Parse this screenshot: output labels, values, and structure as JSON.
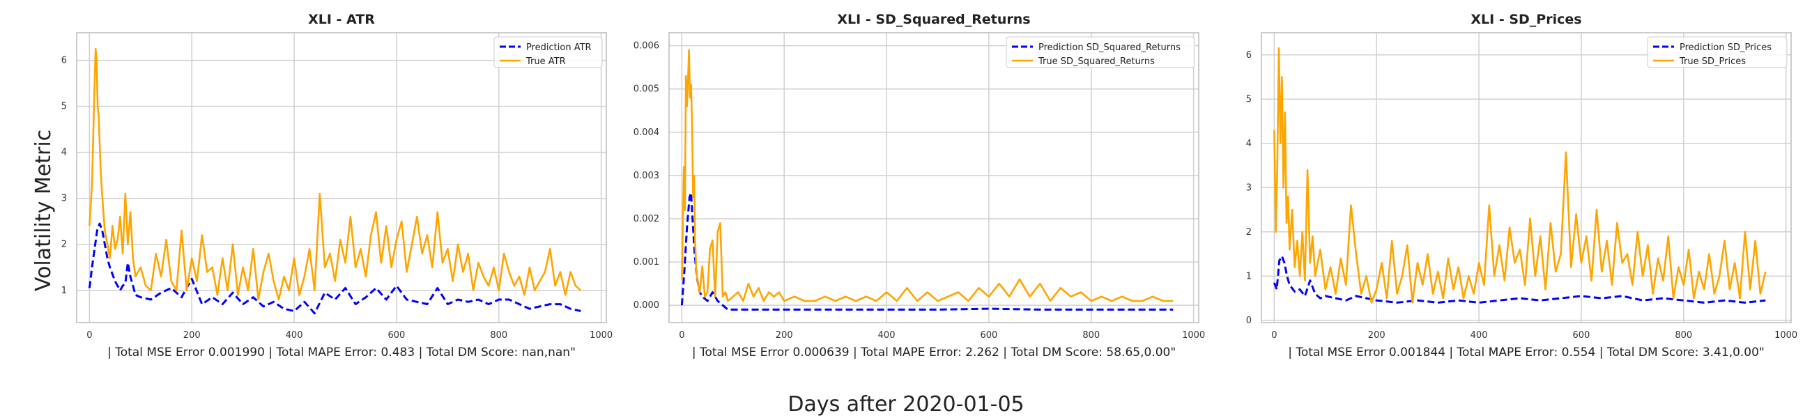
{
  "figure": {
    "supxlabel": "Days after 2020-01-05",
    "supylabel": "Volatility Metric"
  },
  "colors": {
    "prediction": "#0000ff",
    "true": "#ffa500",
    "grid": "#d0d0d0",
    "frame": "#bbbbbb"
  },
  "chart_data": [
    {
      "type": "line",
      "title": "XLI - ATR",
      "xlabel": " | Total MSE Error 0.001990 | Total MAPE Error: 0.483 | Total DM Score: nan,nan\"",
      "ylabel": "",
      "xlim": [
        -25,
        1010
      ],
      "ylim": [
        0.3,
        6.6
      ],
      "xticks": [
        0,
        200,
        400,
        600,
        800,
        1000
      ],
      "yticks": [
        1,
        2,
        3,
        4,
        5,
        6
      ],
      "grid": true,
      "legend": "top-right",
      "series": [
        {
          "name": "Prediction ATR",
          "style": "dashed",
          "x": [
            0,
            5,
            10,
            15,
            20,
            25,
            30,
            35,
            40,
            45,
            50,
            55,
            60,
            65,
            70,
            75,
            80,
            85,
            90,
            100,
            120,
            140,
            160,
            180,
            200,
            220,
            240,
            260,
            280,
            300,
            320,
            340,
            360,
            380,
            400,
            420,
            440,
            460,
            480,
            500,
            520,
            540,
            560,
            580,
            600,
            620,
            640,
            660,
            680,
            700,
            720,
            740,
            760,
            780,
            800,
            820,
            840,
            860,
            880,
            900,
            920,
            940,
            960
          ],
          "y": [
            1.05,
            1.5,
            1.9,
            2.3,
            2.45,
            2.3,
            2.0,
            1.7,
            1.5,
            1.35,
            1.2,
            1.1,
            1.0,
            1.1,
            1.15,
            1.6,
            1.3,
            1.1,
            0.9,
            0.85,
            0.8,
            0.95,
            1.05,
            0.85,
            1.25,
            0.7,
            0.85,
            0.7,
            0.95,
            0.7,
            0.85,
            0.65,
            0.75,
            0.6,
            0.55,
            0.75,
            0.5,
            0.95,
            0.8,
            1.05,
            0.7,
            0.85,
            1.05,
            0.8,
            1.1,
            0.8,
            0.75,
            0.7,
            1.05,
            0.7,
            0.8,
            0.75,
            0.8,
            0.7,
            0.8,
            0.8,
            0.7,
            0.6,
            0.65,
            0.7,
            0.7,
            0.6,
            0.55
          ]
        },
        {
          "name": "True ATR",
          "style": "solid",
          "x": [
            0,
            5,
            8,
            10,
            12,
            14,
            16,
            18,
            20,
            22,
            24,
            26,
            28,
            30,
            35,
            40,
            45,
            50,
            55,
            60,
            65,
            70,
            75,
            80,
            85,
            90,
            100,
            110,
            120,
            130,
            140,
            150,
            160,
            170,
            180,
            190,
            200,
            210,
            220,
            230,
            240,
            250,
            260,
            270,
            280,
            290,
            300,
            310,
            320,
            330,
            340,
            350,
            360,
            370,
            380,
            390,
            400,
            410,
            420,
            430,
            440,
            450,
            460,
            470,
            480,
            490,
            500,
            510,
            520,
            530,
            540,
            550,
            560,
            570,
            580,
            590,
            600,
            610,
            620,
            630,
            640,
            650,
            660,
            670,
            680,
            690,
            700,
            710,
            720,
            730,
            740,
            750,
            760,
            770,
            780,
            790,
            800,
            810,
            820,
            830,
            840,
            850,
            860,
            870,
            880,
            890,
            900,
            910,
            920,
            930,
            940,
            950,
            960
          ],
          "y": [
            2.4,
            3.3,
            4.6,
            5.5,
            6.25,
            6.0,
            5.0,
            4.8,
            4.2,
            3.6,
            3.2,
            2.9,
            2.6,
            2.3,
            2.0,
            1.7,
            2.4,
            1.9,
            2.1,
            2.6,
            1.8,
            3.1,
            2.0,
            2.7,
            1.7,
            1.3,
            1.5,
            1.1,
            1.0,
            1.8,
            1.3,
            2.1,
            1.2,
            1.0,
            2.3,
            1.0,
            1.7,
            1.2,
            2.2,
            1.4,
            1.5,
            0.9,
            1.7,
            1.0,
            2.0,
            0.9,
            1.5,
            1.0,
            1.9,
            0.8,
            1.4,
            1.8,
            1.2,
            0.8,
            1.3,
            1.0,
            1.7,
            0.9,
            1.3,
            1.9,
            1.0,
            3.1,
            1.5,
            1.8,
            1.2,
            2.1,
            1.6,
            2.6,
            1.5,
            1.9,
            1.3,
            2.2,
            2.7,
            1.6,
            2.4,
            1.5,
            2.1,
            2.5,
            1.4,
            2.0,
            2.6,
            1.8,
            2.2,
            1.5,
            2.7,
            1.6,
            1.9,
            1.2,
            2.0,
            1.4,
            1.8,
            1.0,
            1.6,
            1.3,
            1.1,
            1.5,
            1.0,
            1.8,
            1.4,
            1.1,
            1.3,
            0.9,
            1.5,
            1.0,
            1.2,
            1.4,
            1.9,
            1.1,
            1.4,
            0.9,
            1.4,
            1.1,
            1.0
          ]
        }
      ]
    },
    {
      "type": "line",
      "title": "XLI - SD_Squared_Returns",
      "xlabel": " | Total MSE Error 0.000639 | Total MAPE Error: 2.262 | Total DM Score: 58.65,0.00\"",
      "ylabel": "",
      "xlim": [
        -25,
        1010
      ],
      "ylim": [
        -0.0004,
        0.0063
      ],
      "xticks": [
        0,
        200,
        400,
        600,
        800,
        1000
      ],
      "yticks": [
        0.0,
        0.001,
        0.002,
        0.003,
        0.004,
        0.005,
        0.006
      ],
      "ytick_labels": [
        "0.000",
        "0.001",
        "0.002",
        "0.003",
        "0.004",
        "0.005",
        "0.006"
      ],
      "grid": true,
      "legend": "top-right",
      "series": [
        {
          "name": "Prediction SD_Squared_Returns",
          "style": "dashed",
          "x": [
            0,
            5,
            10,
            15,
            18,
            20,
            25,
            30,
            35,
            40,
            50,
            60,
            70,
            80,
            90,
            100,
            150,
            200,
            300,
            400,
            500,
            600,
            700,
            800,
            900,
            960
          ],
          "y": [
            0.0,
            0.0008,
            0.0018,
            0.0025,
            0.0026,
            0.0022,
            0.0012,
            0.0006,
            0.0003,
            0.0002,
            0.0001,
            0.0003,
            0.0001,
            0.0,
            -0.0001,
            -0.0001,
            -0.0001,
            -0.0001,
            -0.0001,
            -0.0001,
            -0.0001,
            -8e-05,
            -0.0001,
            -0.0001,
            -0.0001,
            -0.0001
          ]
        },
        {
          "name": "True SD_Squared_Returns",
          "style": "solid",
          "x": [
            0,
            4,
            6,
            8,
            10,
            12,
            14,
            16,
            18,
            20,
            22,
            24,
            26,
            28,
            30,
            35,
            40,
            45,
            50,
            55,
            60,
            65,
            70,
            75,
            80,
            85,
            90,
            100,
            110,
            120,
            130,
            140,
            150,
            160,
            170,
            180,
            190,
            200,
            220,
            240,
            260,
            280,
            300,
            320,
            340,
            360,
            380,
            400,
            420,
            440,
            460,
            480,
            500,
            520,
            540,
            560,
            580,
            600,
            620,
            640,
            660,
            680,
            700,
            720,
            740,
            760,
            780,
            800,
            820,
            840,
            860,
            880,
            900,
            920,
            940,
            960
          ],
          "y": [
            0.0006,
            0.0032,
            0.0022,
            0.0053,
            0.0046,
            0.0052,
            0.0059,
            0.0048,
            0.0051,
            0.0042,
            0.0025,
            0.003,
            0.0015,
            0.0009,
            0.0006,
            0.0003,
            0.0009,
            0.0002,
            0.0003,
            0.0013,
            0.0015,
            0.0002,
            0.0017,
            0.0019,
            0.0002,
            0.0003,
            0.0001,
            0.0002,
            0.0003,
            0.0001,
            0.0005,
            0.0002,
            0.0004,
            0.0001,
            0.0003,
            0.0002,
            0.0003,
            0.0001,
            0.0002,
            0.0001,
            0.0001,
            0.0002,
            0.0001,
            0.0002,
            0.0001,
            0.0002,
            0.0001,
            0.0003,
            0.0001,
            0.0004,
            0.0001,
            0.0003,
            0.0001,
            0.0002,
            0.0003,
            0.0001,
            0.0004,
            0.0002,
            0.0005,
            0.0002,
            0.0006,
            0.0002,
            0.0005,
            0.0001,
            0.0004,
            0.0002,
            0.0003,
            0.0001,
            0.0002,
            0.0001,
            0.0002,
            0.0001,
            0.0001,
            0.0002,
            0.0001,
            0.0001
          ]
        }
      ]
    },
    {
      "type": "line",
      "title": "XLI - SD_Prices",
      "xlabel": " | Total MSE Error 0.001844 | Total MAPE Error: 0.554 | Total DM Score: 3.41,0.00\"",
      "ylabel": "",
      "xlim": [
        -25,
        1010
      ],
      "ylim": [
        -0.05,
        6.5
      ],
      "xticks": [
        0,
        200,
        400,
        600,
        800,
        1000
      ],
      "yticks": [
        0,
        1,
        2,
        3,
        4,
        5,
        6
      ],
      "grid": true,
      "legend": "top-right",
      "series": [
        {
          "name": "Prediction SD_Prices",
          "style": "dashed",
          "x": [
            0,
            5,
            10,
            15,
            20,
            25,
            30,
            40,
            50,
            60,
            70,
            80,
            90,
            100,
            120,
            140,
            160,
            180,
            200,
            240,
            280,
            320,
            360,
            400,
            440,
            480,
            520,
            560,
            600,
            640,
            680,
            720,
            760,
            800,
            840,
            880,
            920,
            960
          ],
          "y": [
            0.85,
            0.7,
            1.35,
            1.45,
            1.3,
            1.0,
            0.8,
            0.65,
            0.7,
            0.55,
            0.9,
            0.6,
            0.5,
            0.55,
            0.5,
            0.45,
            0.55,
            0.5,
            0.45,
            0.4,
            0.45,
            0.4,
            0.45,
            0.4,
            0.45,
            0.5,
            0.45,
            0.5,
            0.55,
            0.5,
            0.55,
            0.45,
            0.5,
            0.45,
            0.4,
            0.45,
            0.4,
            0.45
          ]
        },
        {
          "name": "True SD_Prices",
          "style": "solid",
          "x": [
            0,
            3,
            6,
            9,
            12,
            15,
            18,
            21,
            24,
            27,
            30,
            35,
            40,
            45,
            50,
            55,
            60,
            65,
            70,
            75,
            80,
            90,
            100,
            110,
            120,
            130,
            140,
            150,
            160,
            170,
            180,
            190,
            200,
            210,
            220,
            230,
            240,
            250,
            260,
            270,
            280,
            290,
            300,
            310,
            320,
            330,
            340,
            350,
            360,
            370,
            380,
            390,
            400,
            410,
            420,
            430,
            440,
            450,
            460,
            470,
            480,
            490,
            500,
            510,
            520,
            530,
            540,
            550,
            560,
            570,
            580,
            590,
            600,
            610,
            620,
            630,
            640,
            650,
            660,
            670,
            680,
            690,
            700,
            710,
            720,
            730,
            740,
            750,
            760,
            770,
            780,
            790,
            800,
            810,
            820,
            830,
            840,
            850,
            860,
            870,
            880,
            890,
            900,
            910,
            920,
            930,
            940,
            950,
            960
          ],
          "y": [
            4.3,
            2.0,
            3.5,
            6.15,
            4.0,
            5.5,
            3.0,
            4.7,
            2.2,
            2.8,
            1.6,
            2.5,
            1.2,
            1.8,
            1.0,
            2.0,
            0.9,
            3.4,
            1.3,
            1.9,
            1.0,
            1.6,
            0.7,
            1.2,
            0.6,
            1.4,
            0.8,
            2.6,
            1.5,
            0.6,
            1.0,
            0.4,
            0.7,
            1.3,
            0.5,
            1.8,
            0.6,
            1.0,
            1.7,
            0.4,
            1.3,
            0.8,
            1.5,
            0.6,
            1.1,
            0.5,
            1.4,
            0.7,
            1.2,
            0.5,
            1.0,
            0.6,
            1.3,
            0.8,
            2.6,
            1.0,
            1.7,
            0.9,
            2.1,
            1.3,
            1.6,
            0.8,
            2.3,
            1.0,
            1.9,
            0.7,
            2.2,
            1.1,
            1.5,
            3.8,
            1.2,
            2.4,
            1.3,
            1.9,
            0.9,
            2.5,
            1.1,
            1.8,
            0.8,
            2.2,
            1.3,
            1.5,
            0.8,
            2.0,
            1.0,
            1.7,
            0.6,
            1.4,
            0.9,
            1.9,
            0.5,
            1.2,
            0.8,
            1.6,
            0.5,
            1.1,
            0.7,
            1.5,
            0.6,
            1.0,
            1.8,
            0.7,
            1.3,
            0.5,
            2.0,
            0.7,
            1.8,
            0.6,
            1.1
          ]
        }
      ]
    }
  ]
}
